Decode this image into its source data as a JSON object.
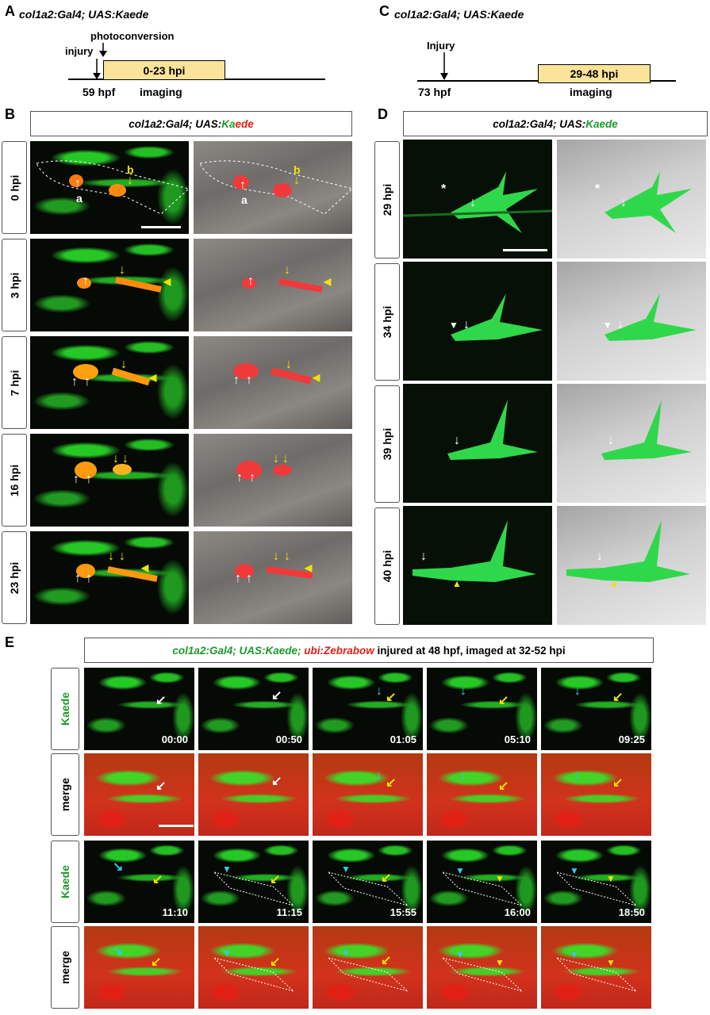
{
  "panel_letters": {
    "A": "A",
    "B": "B",
    "C": "C",
    "D": "D",
    "E": "E"
  },
  "panelA": {
    "title": "col1a2:Gal4; UAS:Kaede",
    "photoconversion": "photoconversion",
    "injury": "injury",
    "window": "0-23 hpi",
    "time_label": "59 hpf",
    "imaging": "imaging"
  },
  "panelC": {
    "title": "col1a2:Gal4; UAS:Kaede",
    "injury": "Injury",
    "window": "29-48 hpi",
    "time_label": "73 hpf",
    "imaging": "imaging"
  },
  "panelB": {
    "header": {
      "prefix": "col1a2:Gal4; UAS:",
      "ka": "Ka",
      "ede": "ede"
    },
    "rows": [
      "0 hpi",
      "3 hpi",
      "7 hpi",
      "16 hpi",
      "23 hpi"
    ],
    "cell_labels": {
      "a": "a",
      "b": "b"
    }
  },
  "panelD": {
    "header": {
      "prefix": "col1a2:Gal4; UAS:",
      "green": "Kaede"
    },
    "rows": [
      "29 hpi",
      "34 hpi",
      "39 hpi",
      "40 hpi"
    ],
    "asterisk": "*"
  },
  "panelE": {
    "header": {
      "green": "col1a2:Gal4; UAS:Kaede;",
      "red": "ubi:Zebrabow",
      "rest": "injured at 48 hpf, imaged at 32-52 hpi"
    },
    "row_labels": [
      "Kaede",
      "merge",
      "Kaede",
      "merge"
    ],
    "timestamps_top": [
      "00:00",
      "00:50",
      "01:05",
      "05:10",
      "09:25"
    ],
    "timestamps_bottom": [
      "11:10",
      "11:15",
      "15:55",
      "16:00",
      "18:50"
    ]
  },
  "colors": {
    "timeline_box": "#fbe39a",
    "green_text": "#1e9a2a",
    "red_text": "#e0201a",
    "arrow_yellow": "#f2e200",
    "arrow_cyan": "#38c8e8"
  }
}
